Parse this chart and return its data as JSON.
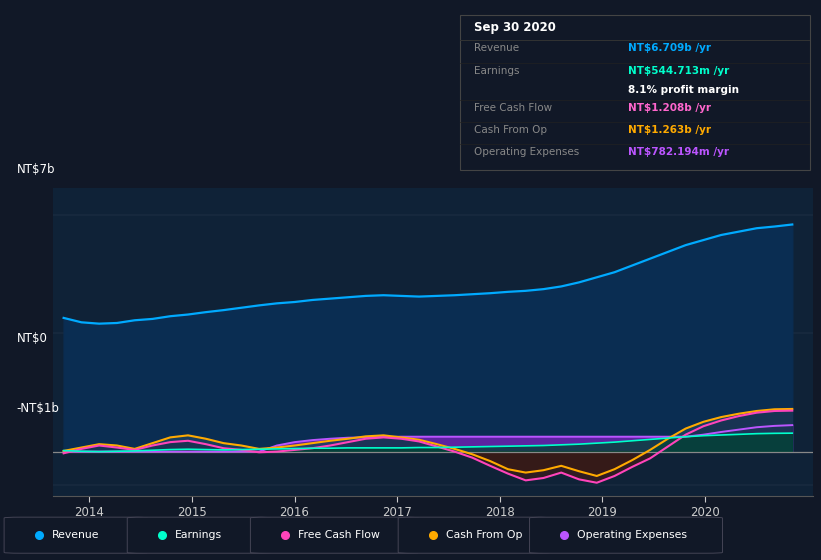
{
  "bg_color": "#111827",
  "plot_bg_color": "#0f2237",
  "title": "Sep 30 2020",
  "tooltip": {
    "Revenue": {
      "label": "Revenue",
      "value": "NT$6.709b /yr",
      "color": "#00aaff"
    },
    "Earnings": {
      "label": "Earnings",
      "value": "NT$544.713m /yr",
      "color": "#00ffcc"
    },
    "profit_margin": {
      "value": "8.1% profit margin",
      "color": "#ffffff"
    },
    "Free Cash Flow": {
      "label": "Free Cash Flow",
      "value": "NT$1.208b /yr",
      "color": "#ff66cc"
    },
    "Cash From Op": {
      "label": "Cash From Op",
      "value": "NT$1.263b /yr",
      "color": "#ffaa00"
    },
    "Operating Expenses": {
      "label": "Operating Expenses",
      "value": "NT$782.194m /yr",
      "color": "#bb55ff"
    }
  },
  "ylim": [
    -1300000000.0,
    7800000000.0
  ],
  "legend_items": [
    {
      "label": "Revenue",
      "color": "#00aaff"
    },
    {
      "label": "Earnings",
      "color": "#00ffcc"
    },
    {
      "label": "Free Cash Flow",
      "color": "#ff44bb"
    },
    {
      "label": "Cash From Op",
      "color": "#ffaa00"
    },
    {
      "label": "Operating Expenses",
      "color": "#bb55ff"
    }
  ],
  "revenue": [
    3950000000.0,
    3820000000.0,
    3780000000.0,
    3800000000.0,
    3880000000.0,
    3920000000.0,
    4000000000.0,
    4050000000.0,
    4120000000.0,
    4180000000.0,
    4250000000.0,
    4320000000.0,
    4380000000.0,
    4420000000.0,
    4480000000.0,
    4520000000.0,
    4560000000.0,
    4600000000.0,
    4620000000.0,
    4600000000.0,
    4580000000.0,
    4600000000.0,
    4620000000.0,
    4650000000.0,
    4680000000.0,
    4720000000.0,
    4750000000.0,
    4800000000.0,
    4880000000.0,
    5000000000.0,
    5150000000.0,
    5300000000.0,
    5500000000.0,
    5700000000.0,
    5900000000.0,
    6100000000.0,
    6250000000.0,
    6400000000.0,
    6500000000.0,
    6600000000.0,
    6650000000.0,
    6710000000.0
  ],
  "earnings": [
    30000000.0,
    10000000.0,
    0.0,
    10000000.0,
    20000000.0,
    40000000.0,
    60000000.0,
    70000000.0,
    60000000.0,
    50000000.0,
    60000000.0,
    70000000.0,
    80000000.0,
    90000000.0,
    100000000.0,
    100000000.0,
    110000000.0,
    110000000.0,
    110000000.0,
    110000000.0,
    120000000.0,
    120000000.0,
    130000000.0,
    140000000.0,
    150000000.0,
    160000000.0,
    170000000.0,
    180000000.0,
    200000000.0,
    220000000.0,
    250000000.0,
    280000000.0,
    320000000.0,
    360000000.0,
    400000000.0,
    440000000.0,
    470000000.0,
    490000000.0,
    510000000.0,
    530000000.0,
    540000000.0,
    545000000.0
  ],
  "free_cash_flow": [
    -50000000.0,
    80000000.0,
    180000000.0,
    120000000.0,
    50000000.0,
    180000000.0,
    280000000.0,
    320000000.0,
    220000000.0,
    100000000.0,
    50000000.0,
    -20000000.0,
    0.0,
    50000000.0,
    100000000.0,
    180000000.0,
    280000000.0,
    380000000.0,
    420000000.0,
    380000000.0,
    300000000.0,
    150000000.0,
    0.0,
    -180000000.0,
    -420000000.0,
    -650000000.0,
    -850000000.0,
    -780000000.0,
    -620000000.0,
    -820000000.0,
    -920000000.0,
    -720000000.0,
    -450000000.0,
    -200000000.0,
    150000000.0,
    500000000.0,
    750000000.0,
    920000000.0,
    1050000000.0,
    1150000000.0,
    1200000000.0,
    1210000000.0
  ],
  "cash_from_op": [
    20000000.0,
    120000000.0,
    220000000.0,
    180000000.0,
    80000000.0,
    250000000.0,
    420000000.0,
    480000000.0,
    380000000.0,
    250000000.0,
    180000000.0,
    80000000.0,
    120000000.0,
    180000000.0,
    250000000.0,
    320000000.0,
    380000000.0,
    450000000.0,
    480000000.0,
    420000000.0,
    350000000.0,
    220000000.0,
    80000000.0,
    -80000000.0,
    -280000000.0,
    -520000000.0,
    -620000000.0,
    -550000000.0,
    -420000000.0,
    -580000000.0,
    -720000000.0,
    -520000000.0,
    -250000000.0,
    50000000.0,
    380000000.0,
    680000000.0,
    880000000.0,
    1020000000.0,
    1120000000.0,
    1200000000.0,
    1250000000.0,
    1260000000.0
  ],
  "operating_expenses": [
    0.0,
    0.0,
    0.0,
    0.0,
    0.0,
    0.0,
    0.0,
    0.0,
    0.0,
    0.0,
    0.0,
    0.0,
    180000000.0,
    280000000.0,
    340000000.0,
    380000000.0,
    410000000.0,
    420000000.0,
    430000000.0,
    440000000.0,
    440000000.0,
    440000000.0,
    440000000.0,
    440000000.0,
    440000000.0,
    440000000.0,
    440000000.0,
    440000000.0,
    440000000.0,
    440000000.0,
    440000000.0,
    440000000.0,
    440000000.0,
    440000000.0,
    440000000.0,
    440000000.0,
    500000000.0,
    580000000.0,
    650000000.0,
    720000000.0,
    760000000.0,
    782000000.0
  ]
}
